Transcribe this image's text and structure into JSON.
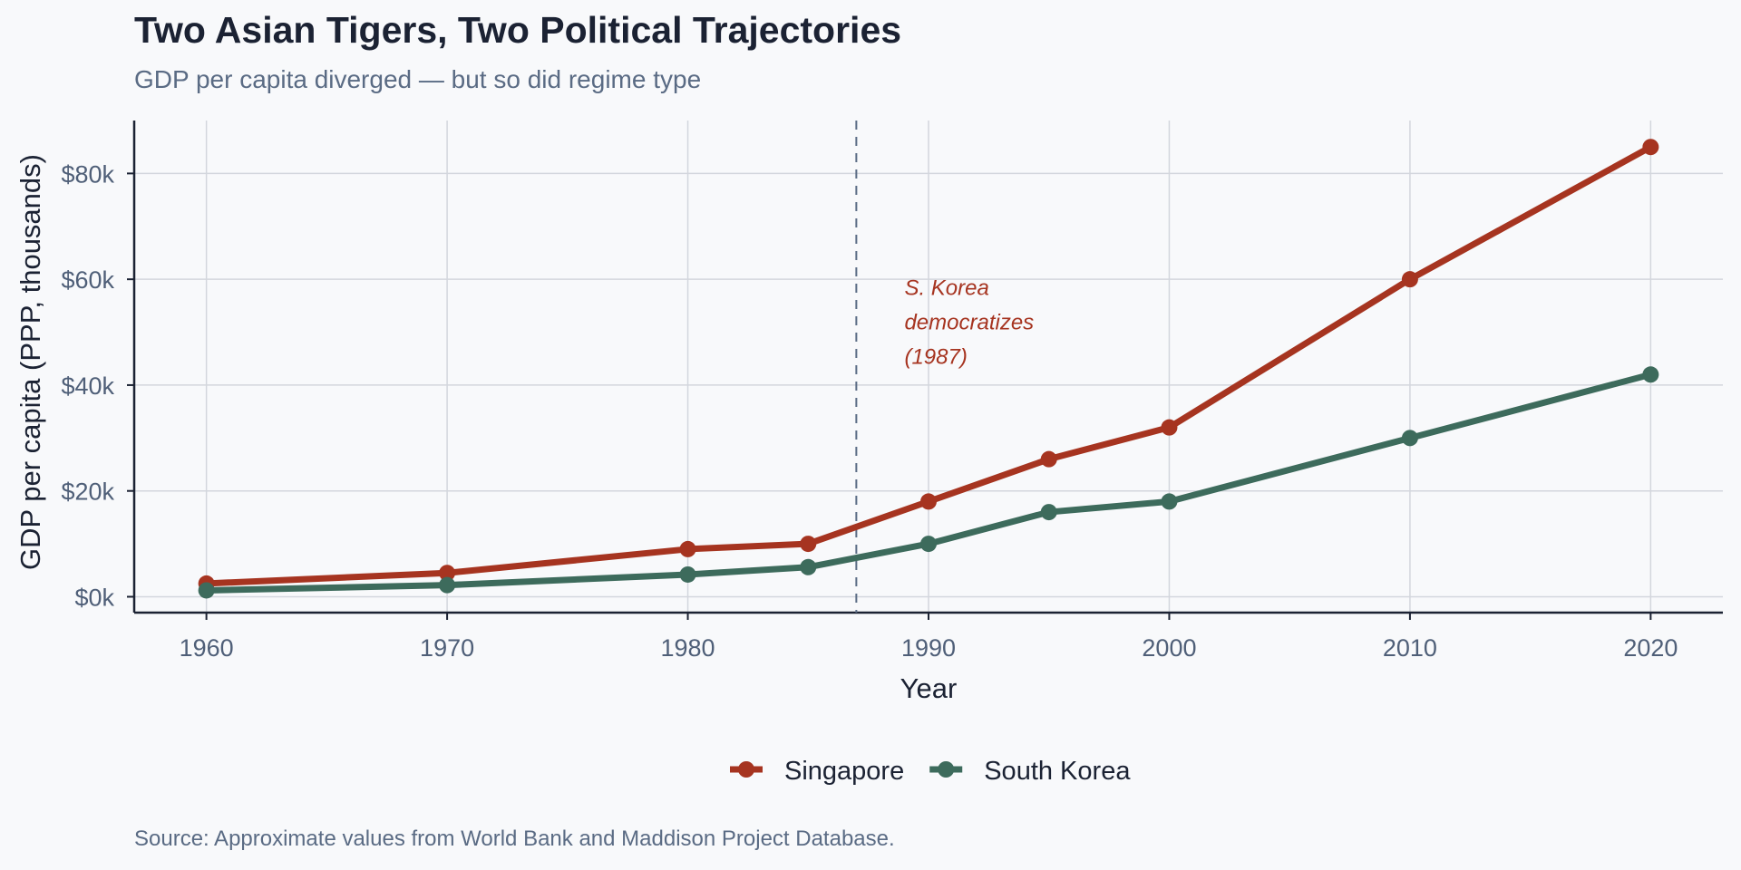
{
  "header": {
    "title": "Two Asian Tigers, Two Political Trajectories",
    "subtitle": "GDP per capita diverged — but so did regime type"
  },
  "footer": {
    "source": "Source: Approximate values from World Bank and Maddison Project Database."
  },
  "chart_data": {
    "type": "line",
    "title": "Two Asian Tigers, Two Political Trajectories",
    "subtitle": "GDP per capita diverged — but so did regime type",
    "xlabel": "Year",
    "ylabel": "GDP per capita (PPP, thousands)",
    "x": [
      1960,
      1970,
      1980,
      1985,
      1990,
      1995,
      2000,
      2010,
      2020
    ],
    "xlim": [
      1957,
      2023
    ],
    "ylim": [
      -3,
      90
    ],
    "xticks": [
      1960,
      1970,
      1980,
      1990,
      2000,
      2010,
      2020
    ],
    "xtick_labels": [
      "1960",
      "1970",
      "1980",
      "1990",
      "2000",
      "2010",
      "2020"
    ],
    "yticks": [
      0,
      20,
      40,
      60,
      80
    ],
    "ytick_labels": [
      "$0k",
      "$20k",
      "$40k",
      "$60k",
      "$80k"
    ],
    "grid": true,
    "legend_position": "bottom-center",
    "series": [
      {
        "name": "Singapore",
        "color": "#a63420",
        "values": [
          2.5,
          4.5,
          9,
          10,
          18,
          26,
          32,
          60,
          85
        ]
      },
      {
        "name": "South Korea",
        "color": "#3d6b5c",
        "values": [
          1.2,
          2.2,
          4.2,
          5.6,
          10,
          16,
          18,
          30,
          42
        ]
      }
    ],
    "annotations": [
      {
        "type": "vline",
        "x": 1987,
        "color": "#5a6b84",
        "style": "dashed"
      },
      {
        "type": "text",
        "x": 1989,
        "y": 57,
        "lines": [
          "S. Korea",
          "democratizes",
          "(1987)"
        ],
        "color": "#a63420"
      }
    ]
  }
}
